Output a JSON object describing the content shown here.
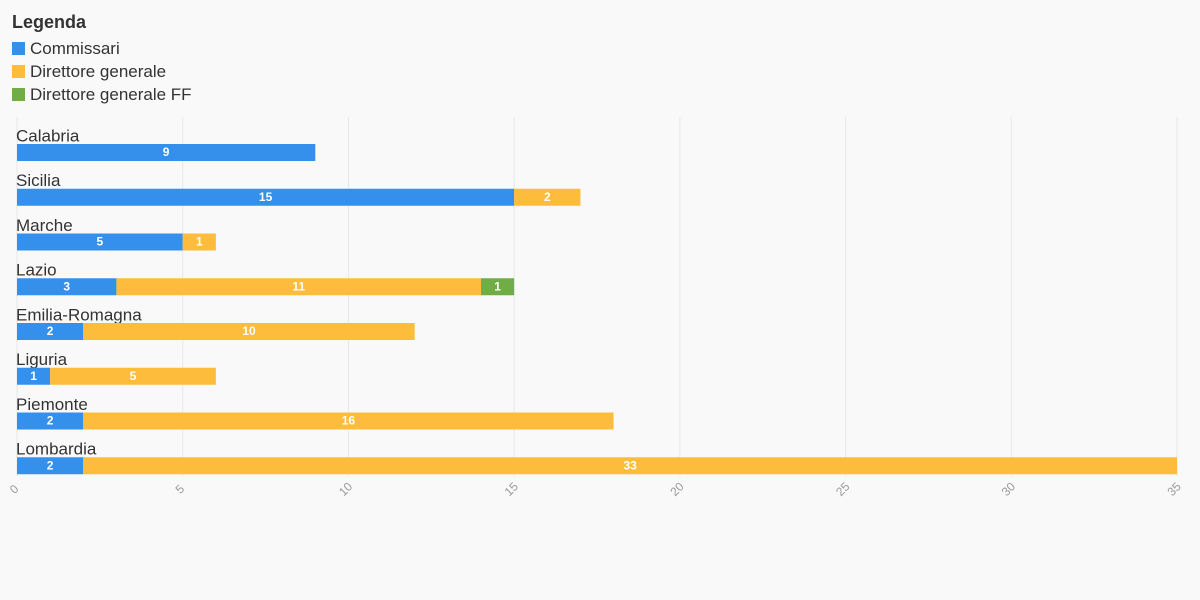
{
  "legend": {
    "title": "Legenda",
    "items": [
      {
        "label": "Commissari",
        "color": "#3590ec"
      },
      {
        "label": "Direttore generale",
        "color": "#fdbc3c"
      },
      {
        "label": "Direttore generale FF",
        "color": "#70ad47"
      }
    ]
  },
  "chart_data": {
    "type": "bar",
    "orientation": "horizontal",
    "stacked": true,
    "categories": [
      "Calabria",
      "Sicilia",
      "Marche",
      "Lazio",
      "Emilia-Romagna",
      "Liguria",
      "Piemonte",
      "Lombardia"
    ],
    "series": [
      {
        "name": "Commissari",
        "color": "#3590ec",
        "values": [
          9,
          15,
          5,
          3,
          2,
          1,
          2,
          2
        ]
      },
      {
        "name": "Direttore generale",
        "color": "#fdbc3c",
        "values": [
          0,
          2,
          1,
          11,
          10,
          5,
          16,
          33
        ]
      },
      {
        "name": "Direttore generale FF",
        "color": "#70ad47",
        "values": [
          0,
          0,
          0,
          1,
          0,
          0,
          0,
          0
        ]
      }
    ],
    "xlim": [
      0,
      35
    ],
    "xticks": [
      0,
      5,
      10,
      15,
      20,
      25,
      30,
      35
    ],
    "grid": true,
    "legend_position": "top-left"
  }
}
